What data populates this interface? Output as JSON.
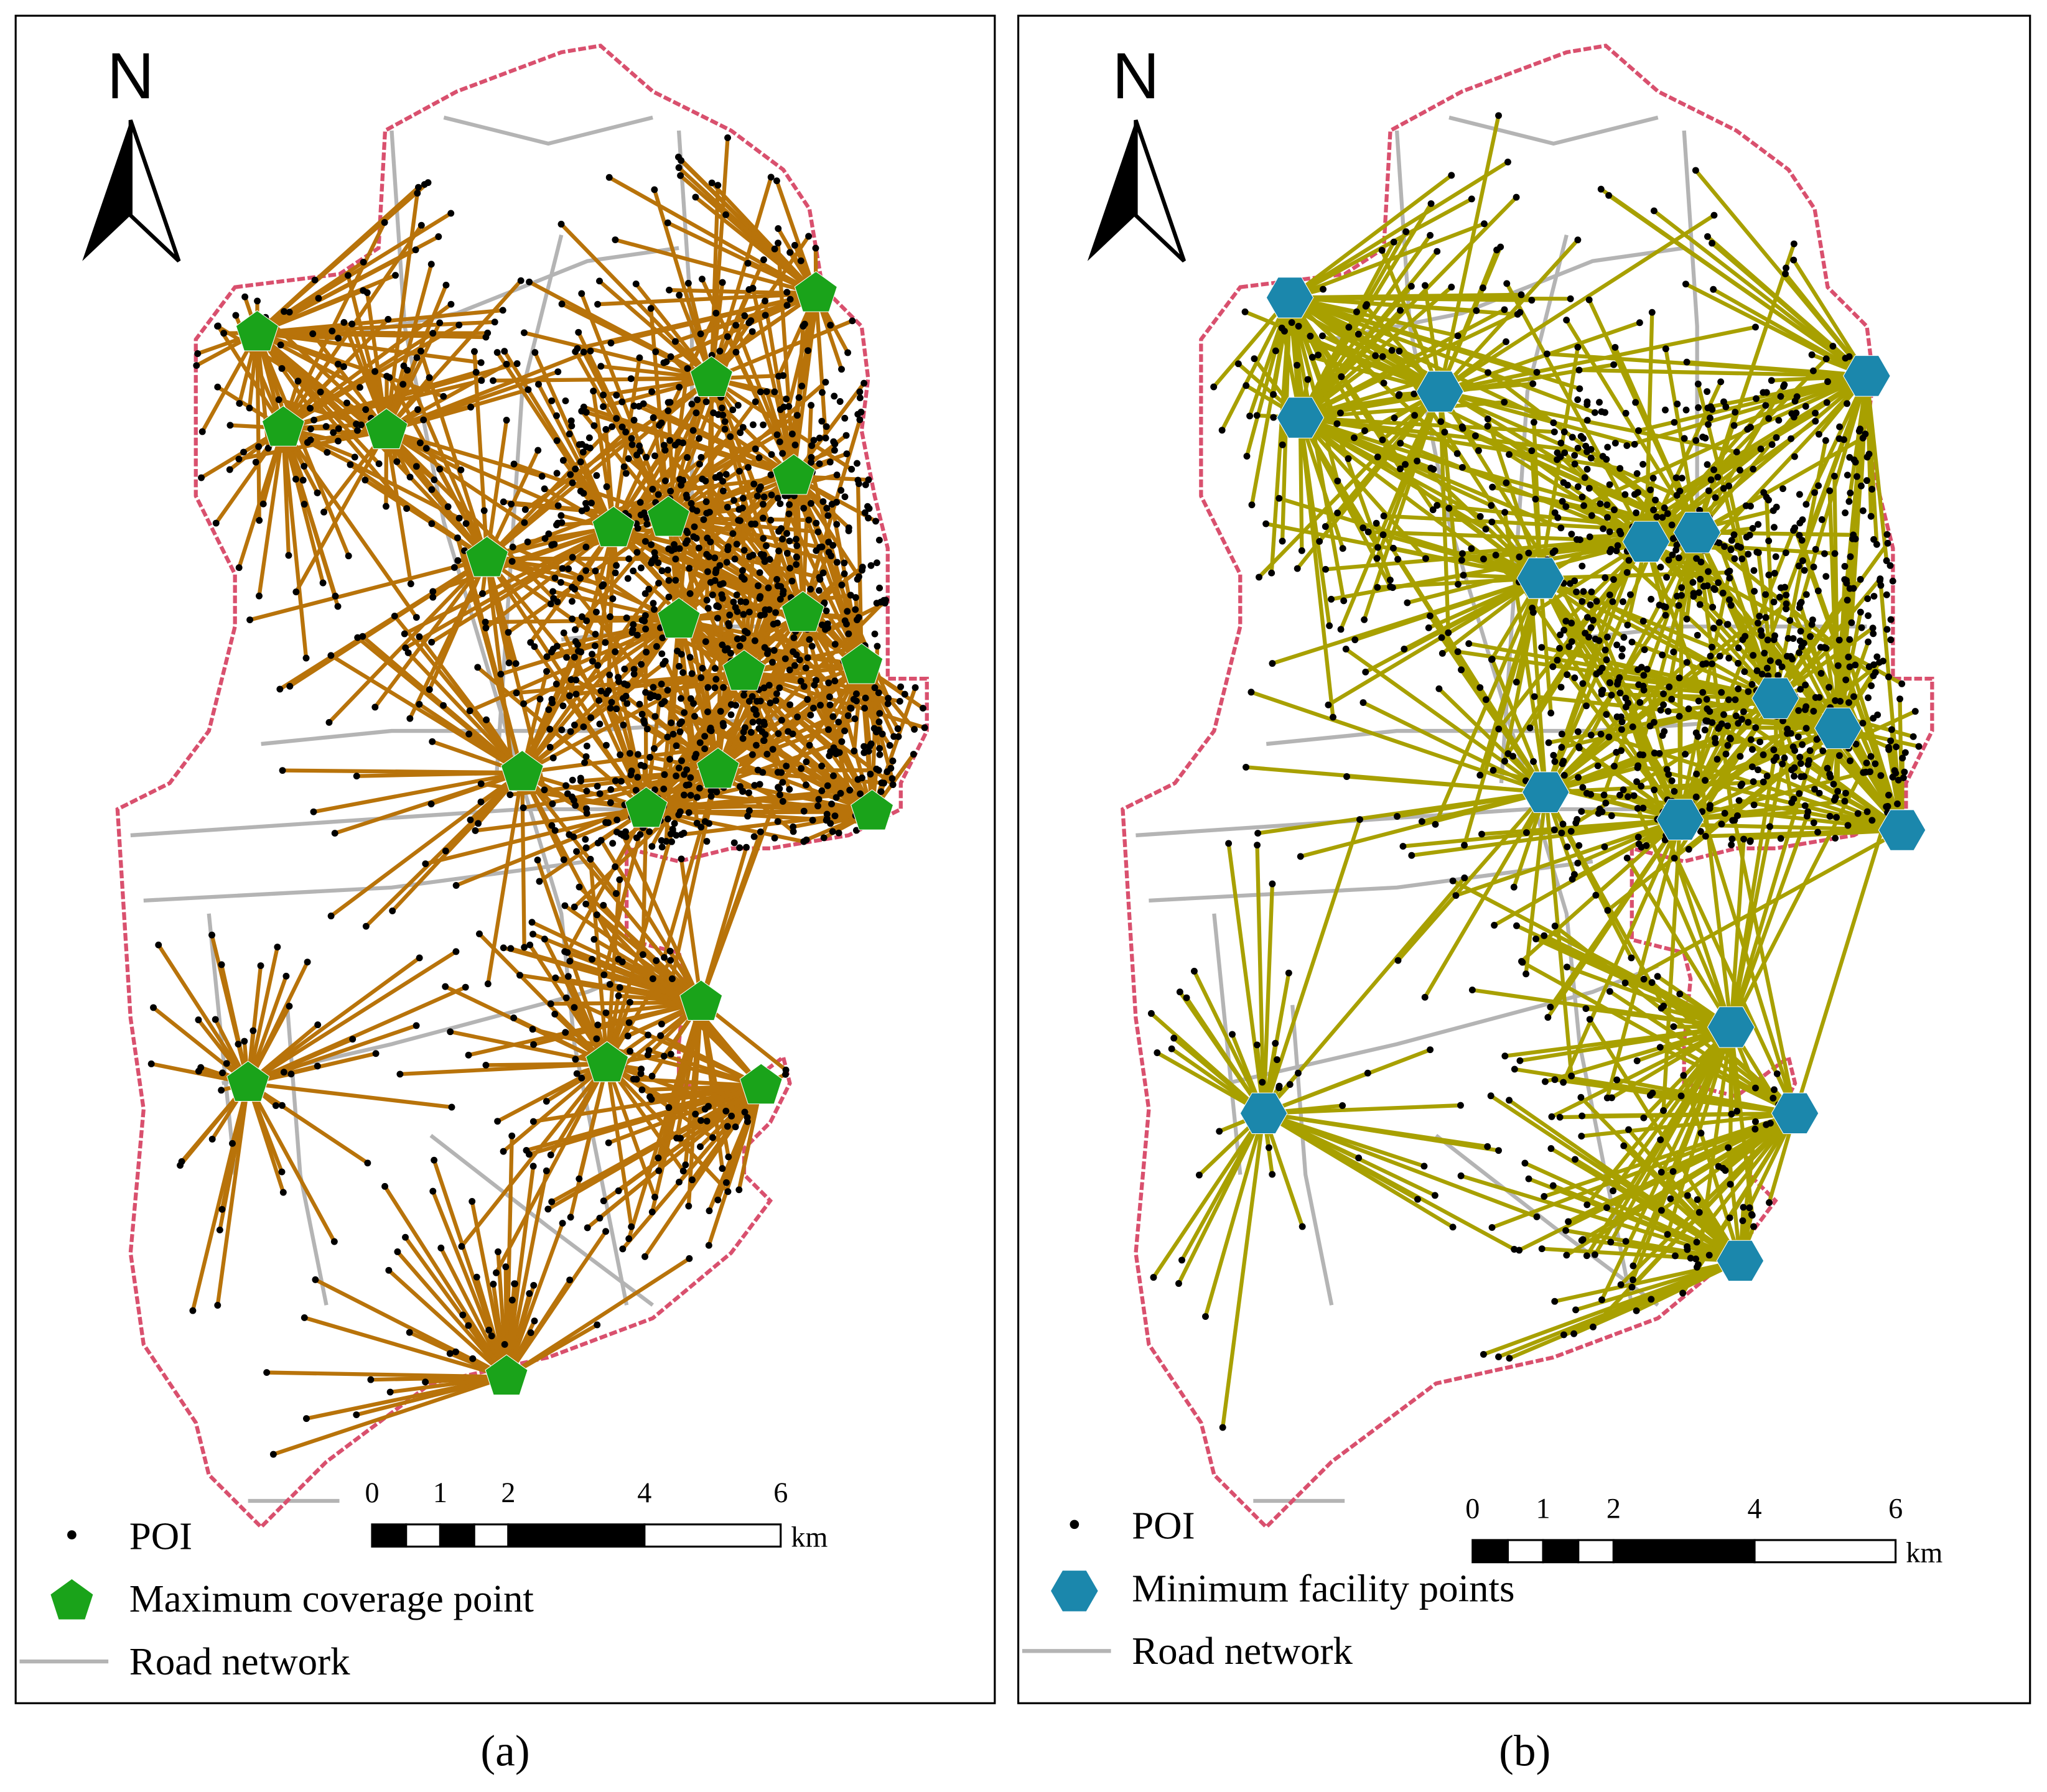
{
  "panels": [
    {
      "label": "(a)",
      "north": "N",
      "legend": {
        "poi": "POI",
        "facility": "Maximum coverage point",
        "road": "Road network"
      },
      "scale_bar": {
        "ticks": [
          0,
          1,
          2,
          4,
          6
        ],
        "unit": "km"
      }
    },
    {
      "label": "(b)",
      "north": "N",
      "legend": {
        "poi": "POI",
        "facility": "Minimum facility points",
        "road": "Road network"
      },
      "scale_bar": {
        "ticks": [
          0,
          1,
          2,
          4,
          6
        ],
        "unit": "km"
      }
    }
  ]
}
